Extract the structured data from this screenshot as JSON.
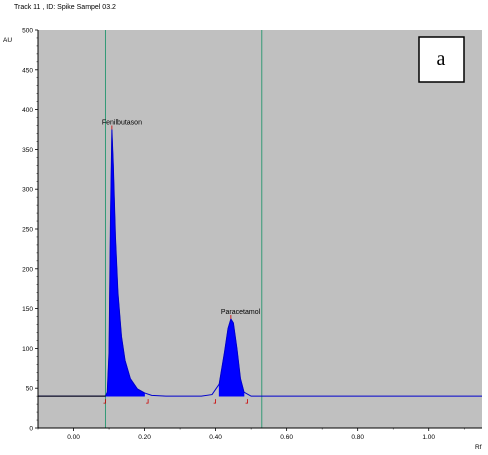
{
  "header": {
    "track_title": "Track  11 , ID: Spike Sampel 03.2"
  },
  "panel_label": "a",
  "chart_data": {
    "type": "line",
    "title": "Track  11 , ID: Spike Sampel 03.2",
    "ylabel": "AU",
    "xlabel": "Rf",
    "xlim": [
      -0.1,
      1.15
    ],
    "ylim": [
      0,
      500
    ],
    "x_ticks": [
      {
        "value": 0.0,
        "label": "0.00"
      },
      {
        "value": 0.2,
        "label": "0.20"
      },
      {
        "value": 0.4,
        "label": "0.40"
      },
      {
        "value": 0.6,
        "label": "0.60"
      },
      {
        "value": 0.8,
        "label": "0.80"
      },
      {
        "value": 1.0,
        "label": "1.00"
      }
    ],
    "y_ticks": [
      {
        "value": 0,
        "label": "0"
      },
      {
        "value": 50,
        "label": "50"
      },
      {
        "value": 100,
        "label": "100"
      },
      {
        "value": 150,
        "label": "150"
      },
      {
        "value": 200,
        "label": "200"
      },
      {
        "value": 250,
        "label": "250"
      },
      {
        "value": 300,
        "label": "300"
      },
      {
        "value": 350,
        "label": "350"
      },
      {
        "value": 400,
        "label": "400"
      },
      {
        "value": 450,
        "label": "450"
      },
      {
        "value": 500,
        "label": "500"
      }
    ],
    "baseline": 40,
    "vertical_markers": [
      0.09,
      0.53
    ],
    "series": [
      {
        "points": [
          [
            -0.1,
            40
          ],
          [
            0.09,
            40
          ],
          [
            0.095,
            45
          ],
          [
            0.1,
            95
          ],
          [
            0.104,
            260
          ],
          [
            0.108,
            375
          ],
          [
            0.112,
            330
          ],
          [
            0.118,
            240
          ],
          [
            0.125,
            170
          ],
          [
            0.135,
            115
          ],
          [
            0.145,
            85
          ],
          [
            0.16,
            62
          ],
          [
            0.18,
            49
          ],
          [
            0.2,
            44
          ],
          [
            0.22,
            41
          ],
          [
            0.26,
            40
          ],
          [
            0.36,
            40
          ],
          [
            0.39,
            42
          ],
          [
            0.41,
            55
          ],
          [
            0.425,
            95
          ],
          [
            0.435,
            125
          ],
          [
            0.443,
            137
          ],
          [
            0.45,
            132
          ],
          [
            0.46,
            100
          ],
          [
            0.47,
            62
          ],
          [
            0.48,
            45
          ],
          [
            0.5,
            40
          ],
          [
            1.15,
            40
          ]
        ]
      }
    ],
    "peaks": [
      {
        "name": "Fenilbutason",
        "rf": 0.108,
        "au": 375,
        "start": 0.09,
        "end": 0.21
      },
      {
        "name": "Paracetamol",
        "rf": 0.443,
        "au": 137,
        "start": 0.4,
        "end": 0.49
      }
    ],
    "colors": {
      "plot_background": "#c0c0c0",
      "peak_fill": "#0000ff",
      "baseline_line": "#0000cc",
      "marker_line": "#339977",
      "integration_marker": "#cc0000"
    }
  }
}
